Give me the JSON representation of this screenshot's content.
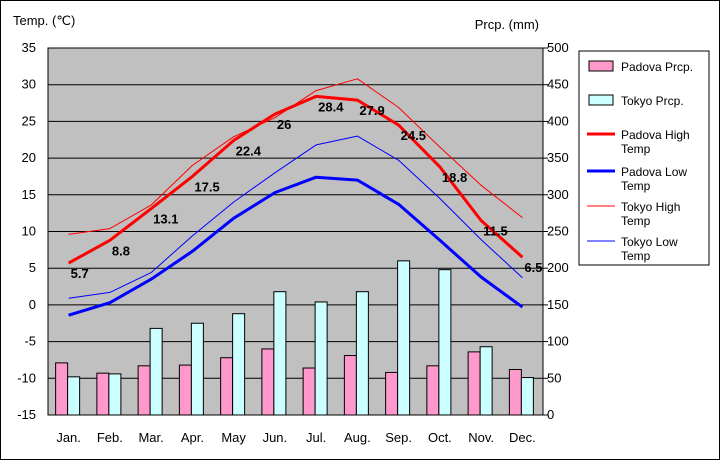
{
  "chart_data": {
    "type": "bar+line",
    "left_axis": {
      "title": "Temp. (℃)",
      "min": -15,
      "max": 35,
      "step": 5
    },
    "right_axis": {
      "title": "Prcp. (mm)",
      "min": 0,
      "max": 500,
      "step": 50
    },
    "categories": [
      "Jan.",
      "Feb.",
      "Mar.",
      "Apr.",
      "May",
      "Jun.",
      "Jul.",
      "Aug.",
      "Sep.",
      "Oct.",
      "Nov.",
      "Dec."
    ],
    "bar_series": [
      {
        "name": "Padova Prcp.",
        "axis": "right",
        "color": "#ff99cc",
        "values": [
          71,
          57,
          67,
          68,
          78,
          90,
          64,
          81,
          58,
          67,
          86,
          62
        ]
      },
      {
        "name": "Tokyo Prcp.",
        "axis": "right",
        "color": "#ccffff",
        "values": [
          52,
          56,
          118,
          125,
          138,
          168,
          154,
          168,
          210,
          198,
          93,
          51
        ]
      }
    ],
    "line_series": [
      {
        "name": "Padova High Temp.",
        "axis": "left",
        "color": "#ff0000",
        "width": 3,
        "values": [
          5.7,
          8.8,
          13.1,
          17.5,
          22.4,
          26,
          28.4,
          27.9,
          24.5,
          18.8,
          11.5,
          6.5
        ],
        "labels": [
          "5.7",
          "8.8",
          "13.1",
          "17.5",
          "22.4",
          "26",
          "28.4",
          "27.9",
          "24.5",
          "18.8",
          "11.5",
          "6.5"
        ]
      },
      {
        "name": "Padova Low Temp.",
        "axis": "left",
        "color": "#0000ff",
        "width": 3,
        "values": [
          -1.4,
          0.3,
          3.5,
          7.3,
          11.8,
          15.3,
          17.4,
          17.0,
          13.7,
          8.8,
          3.8,
          -0.3
        ]
      },
      {
        "name": "Tokyo High Temp.",
        "axis": "left",
        "color": "#ff0000",
        "width": 1,
        "values": [
          9.6,
          10.4,
          13.6,
          19.0,
          22.9,
          25.5,
          29.2,
          30.8,
          26.9,
          21.5,
          16.3,
          11.9
        ]
      },
      {
        "name": "Tokyo Low Temp.",
        "axis": "left",
        "color": "#0000ff",
        "width": 1,
        "values": [
          0.9,
          1.7,
          4.4,
          9.4,
          14.0,
          18.0,
          21.8,
          23.0,
          19.7,
          14.5,
          8.9,
          3.7
        ]
      }
    ],
    "legend": {
      "position": "right",
      "entries": [
        {
          "text": "Padova Prcp.",
          "lines": [
            "Padova Prcp."
          ],
          "kind": "bar",
          "color": "#ff99cc"
        },
        {
          "text": "Tokyo Prcp.",
          "lines": [
            "Tokyo Prcp."
          ],
          "kind": "bar",
          "color": "#ccffff"
        },
        {
          "text": "Padova High Temp",
          "lines": [
            "Padova High",
            "Temp"
          ],
          "kind": "line",
          "color": "#ff0000",
          "width": 3
        },
        {
          "text": "Padova Low Temp",
          "lines": [
            "Padova Low",
            "Temp"
          ],
          "kind": "line",
          "color": "#0000ff",
          "width": 3
        },
        {
          "text": "Tokyo High Temp",
          "lines": [
            "Tokyo High",
            "Temp"
          ],
          "kind": "line",
          "color": "#ff0000",
          "width": 1
        },
        {
          "text": "Tokyo Low Temp",
          "lines": [
            "Tokyo Low",
            "Temp"
          ],
          "kind": "line",
          "color": "#0000ff",
          "width": 1
        }
      ]
    },
    "plot_background": "#c0c0c0",
    "grid": true
  }
}
